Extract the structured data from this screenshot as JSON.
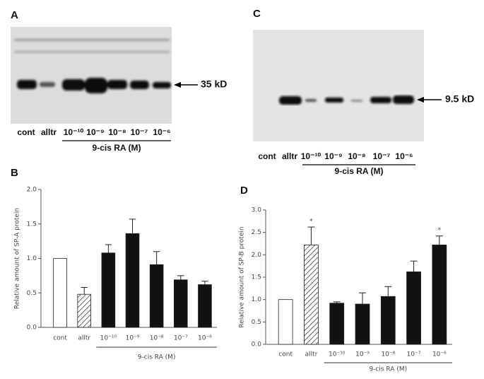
{
  "blots": [
    {
      "panel": "A",
      "lanes": [
        "cont",
        "alltr",
        "10⁻¹⁰",
        "10⁻⁹",
        "10⁻⁸",
        "10⁻⁷",
        "10⁻⁶"
      ],
      "group_label": "9-cis RA (M)",
      "band_label": "35 kD"
    },
    {
      "panel": "C",
      "lanes": [
        "cont",
        "alltr",
        "10⁻¹⁰",
        "10⁻⁹",
        "10⁻⁸",
        "10⁻⁷",
        "10⁻⁶"
      ],
      "group_label": "9-cis RA (M)",
      "band_label": "9.5 kD"
    }
  ],
  "chart_data": [
    {
      "type": "bar",
      "panel": "B",
      "ylabel": "Relative amount of SP-A protein",
      "categories": [
        "cont",
        "alltr",
        "10⁻¹⁰",
        "10⁻⁹",
        "10⁻⁸",
        "10⁻⁷",
        "10⁻⁶"
      ],
      "values": [
        1.0,
        0.48,
        1.08,
        1.36,
        0.91,
        0.69,
        0.62
      ],
      "errors": [
        null,
        0.1,
        0.12,
        0.21,
        0.19,
        0.06,
        0.05
      ],
      "fills": [
        "white",
        "hatched",
        "black",
        "black",
        "black",
        "black",
        "black"
      ],
      "group_label": "9-cis RA (M)",
      "ylim": [
        0,
        2.0
      ],
      "yticks": [
        {
          "value": 0,
          "label": "0.0"
        },
        {
          "value": 0.5,
          "label": "0.5"
        },
        {
          "value": 1,
          "label": "1.0"
        },
        {
          "value": 1.5,
          "label": "1.5"
        },
        {
          "value": 2,
          "label": "2.0"
        }
      ]
    },
    {
      "type": "bar",
      "panel": "D",
      "ylabel": "Relative amount of SP-B protein",
      "categories": [
        "cont",
        "alltr",
        "10⁻¹⁰",
        "10⁻⁹",
        "10⁻⁸",
        "10⁻⁷",
        "10⁻⁶"
      ],
      "values": [
        1.0,
        2.22,
        0.92,
        0.9,
        1.07,
        1.62,
        2.22
      ],
      "errors": [
        null,
        0.4,
        0.03,
        0.25,
        0.22,
        0.24,
        0.2
      ],
      "fills": [
        "white",
        "hatched",
        "black",
        "black",
        "black",
        "black",
        "black"
      ],
      "group_label": "9-cis RA (M)",
      "annotations": [
        {
          "category": "alltr",
          "text": "*"
        },
        {
          "category": "10⁻⁶",
          "text": "*"
        }
      ],
      "ylim": [
        0,
        3.0
      ],
      "yticks": [
        {
          "value": 0,
          "label": "0.0"
        },
        {
          "value": 0.5,
          "label": "0.5"
        },
        {
          "value": 1,
          "label": "1.0"
        },
        {
          "value": 1.5,
          "label": "1.5"
        },
        {
          "value": 2,
          "label": "2.0"
        },
        {
          "value": 2.5,
          "label": "2.5"
        },
        {
          "value": 3,
          "label": "3.0"
        }
      ]
    }
  ]
}
